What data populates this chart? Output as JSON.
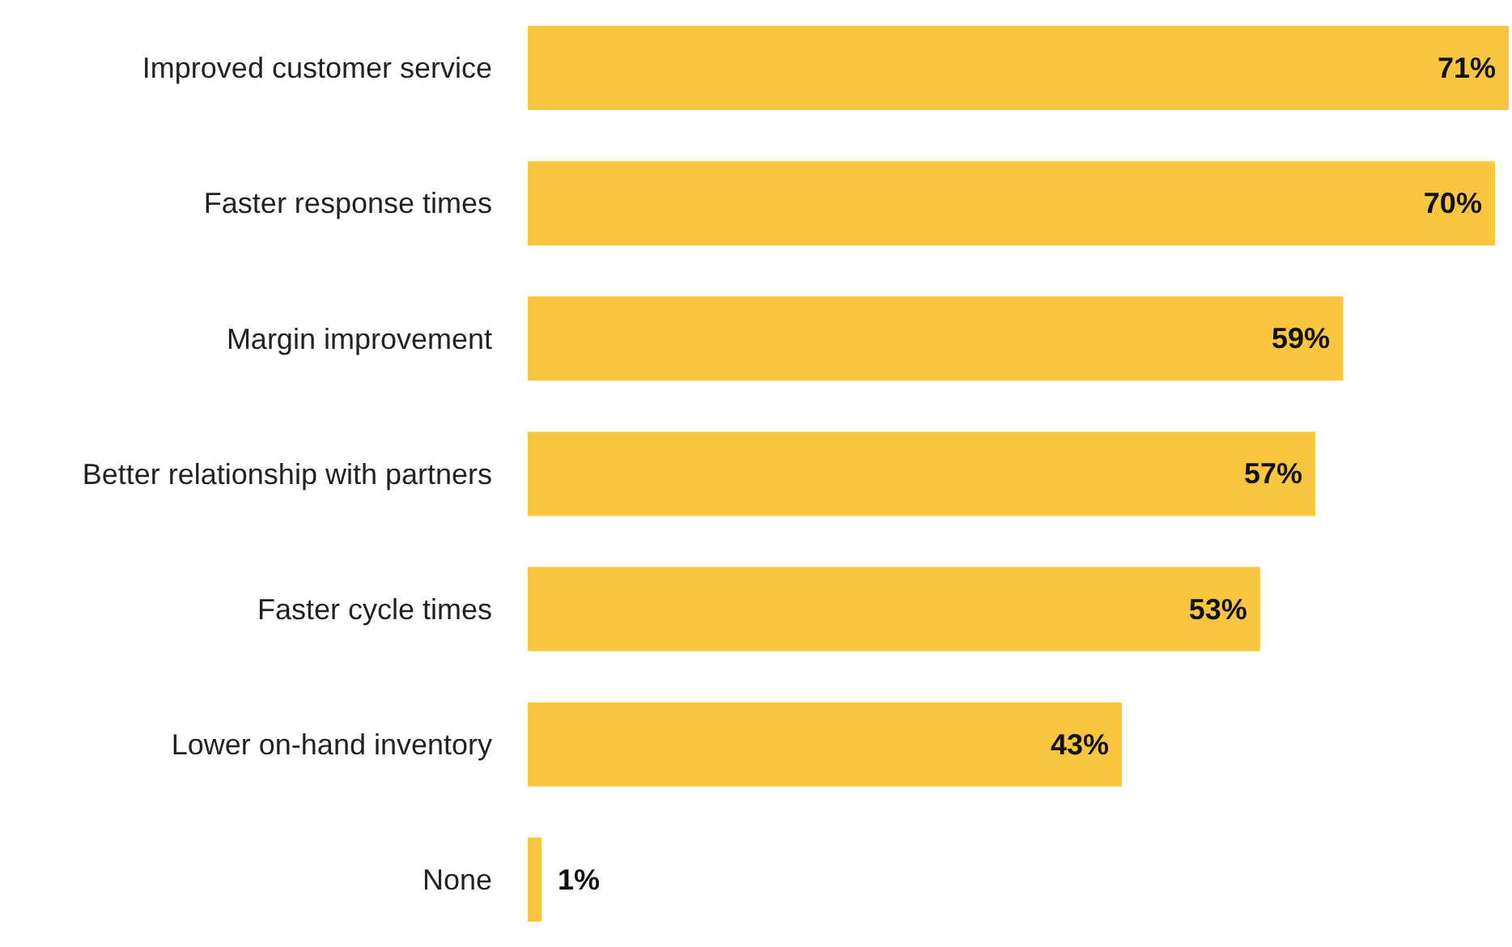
{
  "chart_data": {
    "type": "bar",
    "orientation": "horizontal",
    "categories": [
      "Improved customer service",
      "Faster response times",
      "Margin improvement",
      "Better relationship with partners",
      "Faster cycle times",
      "Lower on-hand inventory",
      "None"
    ],
    "values": [
      71,
      70,
      59,
      57,
      53,
      43,
      1
    ],
    "value_labels": [
      "71%",
      "70%",
      "59%",
      "57%",
      "53%",
      "43%",
      "1%"
    ],
    "color": "#fbc63f",
    "grid": false,
    "legend": false
  }
}
